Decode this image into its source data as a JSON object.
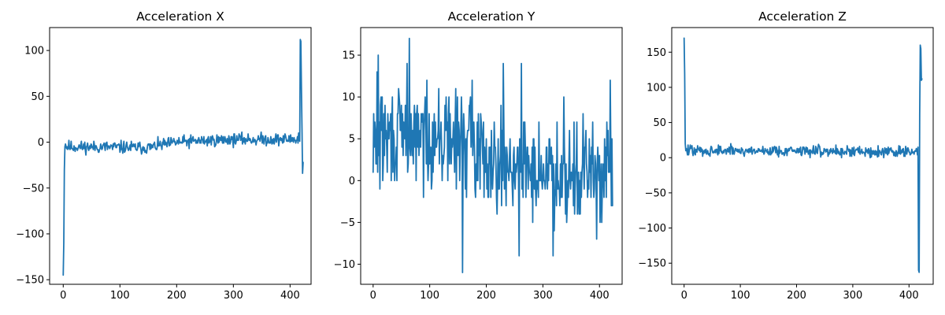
{
  "colors": {
    "series": "#1f77b4",
    "axes": "#000000",
    "background": "#ffffff"
  },
  "chart_data": [
    {
      "type": "line",
      "title": "Acceleration X",
      "xlabel": "",
      "ylabel": "",
      "xlim": [
        -24,
        437
      ],
      "ylim": [
        -155,
        125
      ],
      "xticks": [
        0,
        100,
        200,
        300,
        400
      ],
      "xtick_labels": [
        "0",
        "100",
        "200",
        "300",
        "400"
      ],
      "yticks": [
        -150,
        -100,
        -50,
        0,
        50,
        100
      ],
      "ytick_labels": [
        "−150",
        "−100",
        "−50",
        "0",
        "50",
        "100"
      ],
      "grid": false,
      "legend": "none",
      "series": [
        {
          "kind": "noisy",
          "n": 424,
          "seed": 11,
          "spikes": [
            [
              0,
              -145
            ],
            [
              1,
              -110
            ],
            [
              2,
              -30
            ],
            [
              3,
              -5
            ],
            [
              4,
              -2
            ],
            [
              415,
              10
            ],
            [
              418,
              112
            ],
            [
              419,
              110
            ],
            [
              420,
              60
            ],
            [
              421,
              15
            ],
            [
              422,
              -34
            ],
            [
              423,
              -22
            ]
          ],
          "trend": [
            [
              5,
              -5
            ],
            [
              150,
              -6
            ],
            [
              200,
              0
            ],
            [
              300,
              3
            ],
            [
              414,
              3
            ]
          ],
          "noise": 5
        }
      ]
    },
    {
      "type": "line",
      "title": "Acceleration Y",
      "xlabel": "",
      "ylabel": "",
      "xlim": [
        -22,
        440
      ],
      "ylim": [
        -12.4,
        18.3
      ],
      "xticks": [
        0,
        100,
        200,
        300,
        400
      ],
      "xtick_labels": [
        "0",
        "100",
        "200",
        "300",
        "400"
      ],
      "yticks": [
        -10,
        -5,
        0,
        5,
        10,
        15
      ],
      "ytick_labels": [
        "−10",
        "−5",
        "0",
        "5",
        "10",
        "15"
      ],
      "grid": false,
      "legend": "none",
      "series": [
        {
          "kind": "noisy",
          "n": 424,
          "seed": 29,
          "spikes": [
            [
              0,
              1
            ],
            [
              1,
              8
            ],
            [
              4,
              6
            ],
            [
              7,
              13
            ],
            [
              9,
              15
            ],
            [
              60,
              14
            ],
            [
              64,
              17
            ],
            [
              95,
              12
            ],
            [
              158,
              -11
            ],
            [
              175,
              12
            ],
            [
              230,
              14
            ],
            [
              262,
              14
            ],
            [
              258,
              -9
            ],
            [
              318,
              -9
            ],
            [
              337,
              10
            ],
            [
              395,
              -7
            ],
            [
              419,
              12
            ],
            [
              423,
              -3
            ]
          ],
          "trend": [
            [
              0,
              5
            ],
            [
              150,
              5
            ],
            [
              200,
              3
            ],
            [
              300,
              1
            ],
            [
              423,
              1
            ]
          ],
          "noise": 4.2
        }
      ]
    },
    {
      "type": "line",
      "title": "Acceleration Z",
      "xlabel": "",
      "ylabel": "",
      "xlim": [
        -22,
        443
      ],
      "ylim": [
        -180,
        185
      ],
      "xticks": [
        0,
        100,
        200,
        300,
        400
      ],
      "xtick_labels": [
        "0",
        "100",
        "200",
        "300",
        "400"
      ],
      "yticks": [
        -150,
        -100,
        -50,
        0,
        50,
        100,
        150
      ],
      "ytick_labels": [
        "−150",
        "−100",
        "−50",
        "0",
        "50",
        "100",
        "150"
      ],
      "grid": false,
      "legend": "none",
      "series": [
        {
          "kind": "noisy",
          "n": 424,
          "seed": 47,
          "spikes": [
            [
              0,
              170
            ],
            [
              1,
              120
            ],
            [
              2,
              20
            ],
            [
              3,
              10
            ],
            [
              416,
              15
            ],
            [
              417,
              -160
            ],
            [
              418,
              -163
            ],
            [
              419,
              60
            ],
            [
              420,
              160
            ],
            [
              421,
              155
            ],
            [
              422,
              110
            ],
            [
              423,
              112
            ]
          ],
          "trend": [
            [
              3,
              10
            ],
            [
              200,
              10
            ],
            [
              415,
              8
            ]
          ],
          "noise": 6
        }
      ]
    }
  ]
}
